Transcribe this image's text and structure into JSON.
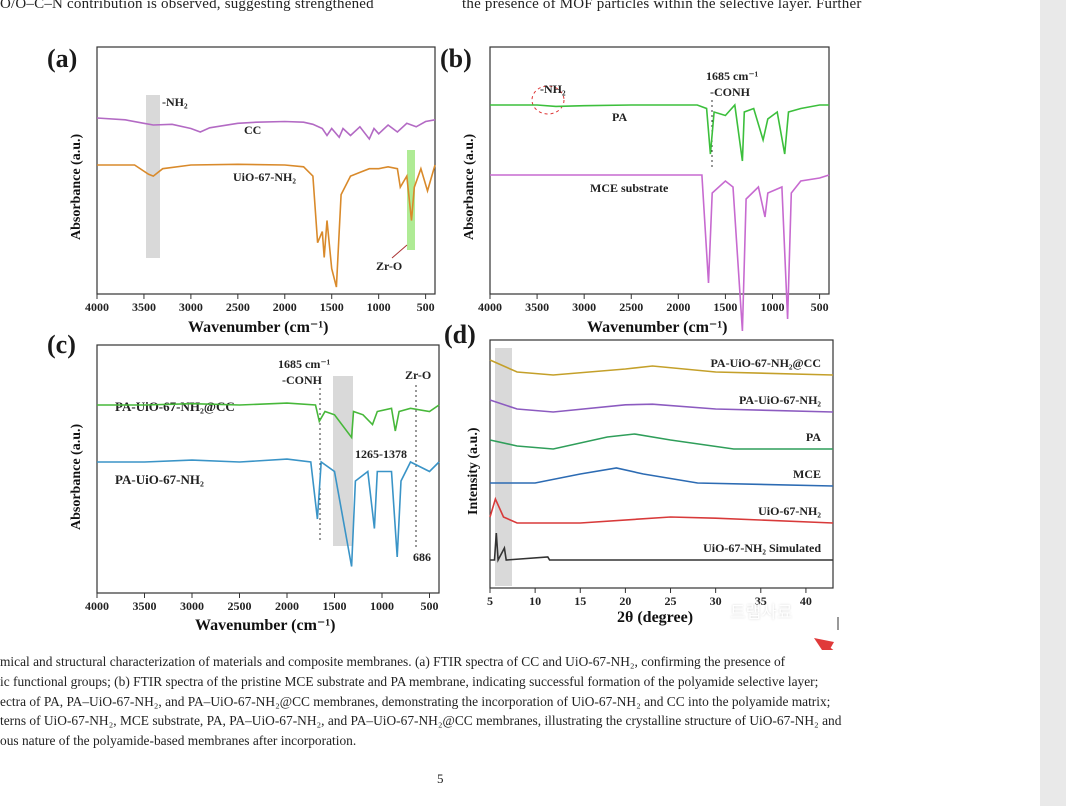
{
  "page": {
    "top_left_text": "O/O–C–N contribution is observed, suggesting strengthened",
    "top_right_text": "the presence of MOF particles within the selective layer. Further",
    "caption_lines": [
      "mical and structural characterization of materials and composite membranes. (a) FTIR spectra of CC and UiO-67-NH₂, confirming the presence of",
      "ic functional groups; (b) FTIR spectra of the pristine MCE substrate and PA membrane, indicating successful formation of the polyamide selective layer;",
      "ectra of PA, PA–UiO-67-NH₂, and PA–UiO-67-NH₂@CC membranes, demonstrating the incorporation of UiO-67-NH₂ and CC into the polyamide matrix;",
      "terns of UiO-67-NH₂, MCE substrate, PA, PA–UiO-67-NH₂, and PA–UiO-67-NH₂@CC membranes, illustrating the crystalline structure of UiO-67-NH₂ and",
      "ous nature of the polyamide-based membranes after incorporation."
    ],
    "page_number": "5",
    "watermark": "트랩사료"
  },
  "chart_data": [
    {
      "panel": "(a)",
      "type": "line",
      "xlabel": "Wavenumber (cm⁻¹)",
      "ylabel": "Absorbance (a.u.)",
      "xlim": [
        4000,
        400
      ],
      "xticks": [
        4000,
        3500,
        3000,
        2500,
        2000,
        1500,
        1000,
        500
      ],
      "series": [
        {
          "name": "CC",
          "color": "#b36ac4",
          "points": [
            [
              4000,
              1.0
            ],
            [
              3700,
              0.95
            ],
            [
              3500,
              0.85
            ],
            [
              3400,
              0.8
            ],
            [
              3200,
              0.82
            ],
            [
              3000,
              0.7
            ],
            [
              2900,
              0.6
            ],
            [
              2800,
              0.72
            ],
            [
              2500,
              0.85
            ],
            [
              2300,
              0.88
            ],
            [
              2000,
              0.9
            ],
            [
              1800,
              0.88
            ],
            [
              1700,
              0.82
            ],
            [
              1600,
              0.7
            ],
            [
              1550,
              0.5
            ],
            [
              1500,
              0.7
            ],
            [
              1420,
              0.45
            ],
            [
              1380,
              0.7
            ],
            [
              1300,
              0.5
            ],
            [
              1200,
              0.75
            ],
            [
              1100,
              0.4
            ],
            [
              1050,
              0.7
            ],
            [
              1000,
              0.55
            ],
            [
              900,
              0.8
            ],
            [
              800,
              0.6
            ],
            [
              700,
              0.85
            ],
            [
              600,
              0.75
            ],
            [
              500,
              0.9
            ],
            [
              400,
              0.95
            ]
          ]
        },
        {
          "name": "UiO-67-NH₂",
          "color": "#d98a2b",
          "points": [
            [
              4000,
              0.3
            ],
            [
              3600,
              0.3
            ],
            [
              3450,
              0.05
            ],
            [
              3400,
              0.0
            ],
            [
              3300,
              0.2
            ],
            [
              3000,
              0.3
            ],
            [
              2500,
              0.32
            ],
            [
              2000,
              0.3
            ],
            [
              1800,
              0.25
            ],
            [
              1700,
              0.0
            ],
            [
              1650,
              -1.8
            ],
            [
              1600,
              -1.5
            ],
            [
              1580,
              -2.2
            ],
            [
              1550,
              -1.2
            ],
            [
              1500,
              -2.5
            ],
            [
              1450,
              -3.0
            ],
            [
              1420,
              -1.5
            ],
            [
              1400,
              -0.5
            ],
            [
              1300,
              0.0
            ],
            [
              1200,
              0.1
            ],
            [
              1100,
              0.2
            ],
            [
              1000,
              0.2
            ],
            [
              900,
              0.25
            ],
            [
              800,
              0.2
            ],
            [
              770,
              -0.3
            ],
            [
              700,
              0.0
            ],
            [
              650,
              -1.2
            ],
            [
              620,
              -0.3
            ],
            [
              550,
              0.2
            ],
            [
              480,
              -0.4
            ],
            [
              400,
              0.3
            ]
          ]
        }
      ],
      "annotations": [
        "-NH₂",
        "Zr-O"
      ]
    },
    {
      "panel": "(b)",
      "type": "line",
      "xlabel": "Wavenumber (cm⁻¹)",
      "ylabel": "Absorbance (a.u.)",
      "xlim": [
        4000,
        400
      ],
      "xticks": [
        4000,
        3500,
        3000,
        2500,
        2000,
        1500,
        1000,
        500
      ],
      "series": [
        {
          "name": "PA",
          "color": "#3cbf3c",
          "points": [
            [
              4000,
              1.0
            ],
            [
              3500,
              1.0
            ],
            [
              3300,
              0.98
            ],
            [
              3000,
              0.99
            ],
            [
              2500,
              1.0
            ],
            [
              2000,
              1.0
            ],
            [
              1800,
              1.0
            ],
            [
              1700,
              0.95
            ],
            [
              1660,
              0.3
            ],
            [
              1620,
              0.9
            ],
            [
              1500,
              0.85
            ],
            [
              1400,
              1.0
            ],
            [
              1320,
              0.2
            ],
            [
              1300,
              0.9
            ],
            [
              1200,
              0.95
            ],
            [
              1100,
              0.5
            ],
            [
              1050,
              0.8
            ],
            [
              950,
              0.9
            ],
            [
              870,
              0.3
            ],
            [
              830,
              0.9
            ],
            [
              700,
              0.95
            ],
            [
              500,
              1.0
            ],
            [
              400,
              1.0
            ]
          ]
        },
        {
          "name": "MCE substrate",
          "color": "#c76ad0",
          "points": [
            [
              4000,
              1.0
            ],
            [
              3000,
              1.0
            ],
            [
              2000,
              1.0
            ],
            [
              1750,
              1.0
            ],
            [
              1680,
              -0.8
            ],
            [
              1640,
              0.7
            ],
            [
              1500,
              0.9
            ],
            [
              1420,
              0.8
            ],
            [
              1320,
              -1.6
            ],
            [
              1280,
              0.6
            ],
            [
              1150,
              0.8
            ],
            [
              1080,
              0.3
            ],
            [
              1050,
              0.7
            ],
            [
              900,
              0.8
            ],
            [
              840,
              -1.4
            ],
            [
              800,
              0.7
            ],
            [
              700,
              0.9
            ],
            [
              500,
              0.95
            ],
            [
              400,
              1.0
            ]
          ]
        }
      ],
      "annotations": [
        "-NH₂",
        "1685 cm⁻¹",
        "-CONH"
      ]
    },
    {
      "panel": "(c)",
      "type": "line",
      "xlabel": "Wavenumber (cm⁻¹)",
      "ylabel": "Absorbance (a.u.)",
      "xlim": [
        4000,
        400
      ],
      "xticks": [
        4000,
        3500,
        3000,
        2500,
        2000,
        1500,
        1000,
        500
      ],
      "series": [
        {
          "name": "PA-UiO-67-NH₂@CC",
          "color": "#47b83a",
          "points": [
            [
              4000,
              1.0
            ],
            [
              3500,
              1.0
            ],
            [
              3000,
              1.02
            ],
            [
              2500,
              1.0
            ],
            [
              2000,
              1.03
            ],
            [
              1700,
              1.0
            ],
            [
              1660,
              0.75
            ],
            [
              1600,
              0.9
            ],
            [
              1500,
              0.85
            ],
            [
              1320,
              0.5
            ],
            [
              1300,
              0.9
            ],
            [
              1200,
              0.85
            ],
            [
              1100,
              0.7
            ],
            [
              1050,
              0.9
            ],
            [
              900,
              0.95
            ],
            [
              860,
              0.6
            ],
            [
              820,
              0.9
            ],
            [
              700,
              0.95
            ],
            [
              500,
              0.9
            ],
            [
              400,
              1.0
            ]
          ]
        },
        {
          "name": "PA-UiO-67-NH₂",
          "color": "#3a94c7",
          "points": [
            [
              4000,
              0.0
            ],
            [
              3500,
              0.0
            ],
            [
              3000,
              0.02
            ],
            [
              2500,
              0.0
            ],
            [
              2000,
              0.03
            ],
            [
              1750,
              0.0
            ],
            [
              1680,
              -0.6
            ],
            [
              1640,
              0.0
            ],
            [
              1500,
              -0.1
            ],
            [
              1320,
              -1.1
            ],
            [
              1280,
              -0.2
            ],
            [
              1150,
              -0.1
            ],
            [
              1080,
              -0.7
            ],
            [
              1050,
              -0.1
            ],
            [
              900,
              -0.1
            ],
            [
              840,
              -1.0
            ],
            [
              800,
              -0.2
            ],
            [
              700,
              0.0
            ],
            [
              500,
              -0.1
            ],
            [
              400,
              0.0
            ]
          ]
        }
      ],
      "annotations": [
        "1685 cm⁻¹",
        "-CONH",
        "Zr-O",
        "1265-1378",
        "686"
      ]
    },
    {
      "panel": "(d)",
      "type": "line",
      "xlabel": "2θ (degree)",
      "ylabel": "Intensity (a.u.)",
      "xlim": [
        5,
        43
      ],
      "xticks": [
        5,
        10,
        15,
        20,
        25,
        30,
        35,
        40
      ],
      "series": [
        {
          "name": "PA-UiO-67-NH₂@CC",
          "color": "#c4a02a",
          "offset": 5,
          "points": [
            [
              5,
              0.25
            ],
            [
              8,
              0.05
            ],
            [
              12,
              0.0
            ],
            [
              20,
              0.1
            ],
            [
              23,
              0.15
            ],
            [
              30,
              0.05
            ],
            [
              43,
              0.0
            ]
          ]
        },
        {
          "name": "PA-UiO-67-NH₂",
          "color": "#8c5bc0",
          "offset": 4,
          "points": [
            [
              5,
              0.2
            ],
            [
              8,
              0.05
            ],
            [
              12,
              0.0
            ],
            [
              20,
              0.12
            ],
            [
              23,
              0.13
            ],
            [
              30,
              0.05
            ],
            [
              43,
              0.0
            ]
          ]
        },
        {
          "name": "PA",
          "color": "#2f9e5a",
          "offset": 3,
          "points": [
            [
              5,
              0.15
            ],
            [
              8,
              0.05
            ],
            [
              12,
              0.0
            ],
            [
              18,
              0.2
            ],
            [
              21,
              0.25
            ],
            [
              25,
              0.15
            ],
            [
              32,
              0.0
            ],
            [
              43,
              0.0
            ]
          ]
        },
        {
          "name": "MCE",
          "color": "#2c6bb3",
          "offset": 2,
          "points": [
            [
              5,
              0.05
            ],
            [
              10,
              0.05
            ],
            [
              15,
              0.2
            ],
            [
              19,
              0.3
            ],
            [
              22,
              0.2
            ],
            [
              28,
              0.05
            ],
            [
              43,
              0.0
            ]
          ]
        },
        {
          "name": "UiO-67-NH₂",
          "color": "#d83a3a",
          "offset": 1,
          "points": [
            [
              5,
              0.1
            ],
            [
              5.6,
              0.4
            ],
            [
              6.5,
              0.1
            ],
            [
              8,
              0.0
            ],
            [
              15,
              0.0
            ],
            [
              25,
              0.1
            ],
            [
              30,
              0.08
            ],
            [
              43,
              0.0
            ]
          ]
        },
        {
          "name": "UiO-67-NH₂ Simulated",
          "color": "#333333",
          "offset": 0,
          "points": [
            [
              5,
              0.0
            ],
            [
              5.5,
              0.0
            ],
            [
              5.7,
              0.45
            ],
            [
              5.9,
              0.0
            ],
            [
              6.6,
              0.2
            ],
            [
              6.8,
              0.0
            ],
            [
              11.4,
              0.05
            ],
            [
              11.6,
              0.0
            ],
            [
              43,
              0.0
            ]
          ]
        }
      ]
    }
  ]
}
